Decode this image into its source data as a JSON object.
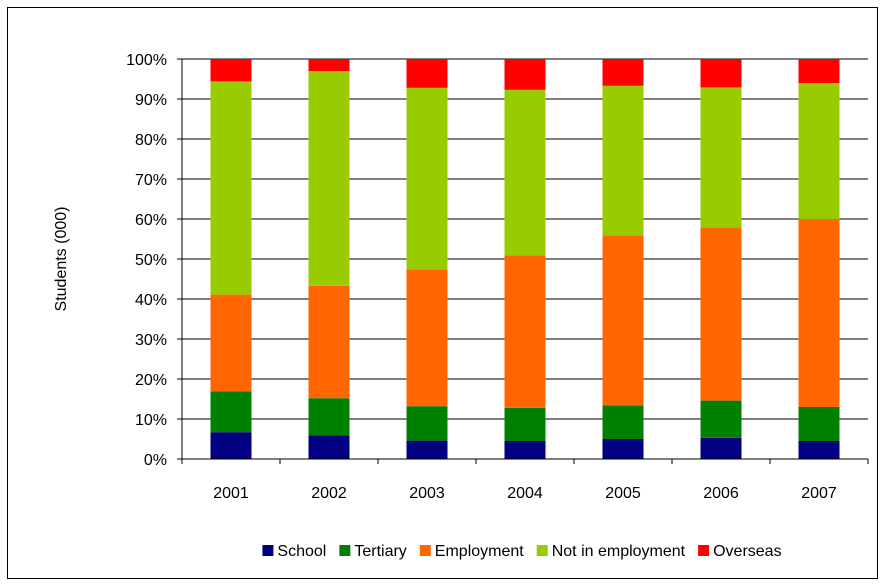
{
  "chart_data": {
    "type": "bar",
    "stacked": true,
    "percent": true,
    "ylabel": "Students (000)",
    "xlabel": "",
    "ylim": [
      0,
      100
    ],
    "yticks": [
      "0%",
      "10%",
      "20%",
      "30%",
      "40%",
      "50%",
      "60%",
      "70%",
      "80%",
      "90%",
      "100%"
    ],
    "categories": [
      "2001",
      "2002",
      "2003",
      "2004",
      "2005",
      "2006",
      "2007"
    ],
    "series": [
      {
        "name": "School",
        "color": "#000080",
        "values": [
          6.7,
          5.9,
          4.6,
          4.5,
          5.0,
          5.3,
          4.5
        ]
      },
      {
        "name": "Tertiary",
        "color": "#008000",
        "values": [
          10.2,
          9.3,
          8.6,
          8.3,
          8.4,
          9.3,
          8.5
        ]
      },
      {
        "name": "Employment",
        "color": "#ff6600",
        "values": [
          24.2,
          28.1,
          34.2,
          38.1,
          42.5,
          43.3,
          46.9
        ]
      },
      {
        "name": "Not in employment",
        "color": "#99cc00",
        "values": [
          53.3,
          53.7,
          45.4,
          41.4,
          37.4,
          35.0,
          34.1
        ]
      },
      {
        "name": "Overseas",
        "color": "#ff0000",
        "values": [
          5.6,
          3.0,
          7.2,
          7.7,
          6.7,
          7.1,
          6.0
        ]
      }
    ],
    "grid": true,
    "legend": "bottom"
  }
}
